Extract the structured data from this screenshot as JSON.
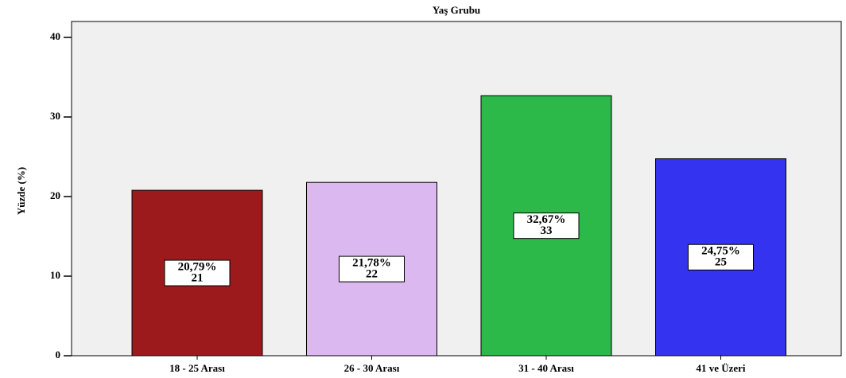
{
  "chart_data": {
    "type": "bar",
    "title": "Yaş Grubu",
    "y_label": "Yüzde (%)",
    "categories": [
      "18 - 25 Arası",
      "26 - 30 Arası",
      "31 - 40 Arası",
      "41 ve Üzeri"
    ],
    "values": [
      20.79,
      21.78,
      32.67,
      24.75
    ],
    "value_labels": [
      "20,79%",
      "21,78%",
      "32,67%",
      "24,75%"
    ],
    "counts": [
      21,
      22,
      33,
      25
    ],
    "colors": [
      "#9c1a1c",
      "#dcb8f0",
      "#2db84a",
      "#3333f0"
    ],
    "ylim": [
      0,
      42
    ],
    "yticks": [
      0,
      10,
      20,
      30,
      40
    ],
    "grid": false
  }
}
